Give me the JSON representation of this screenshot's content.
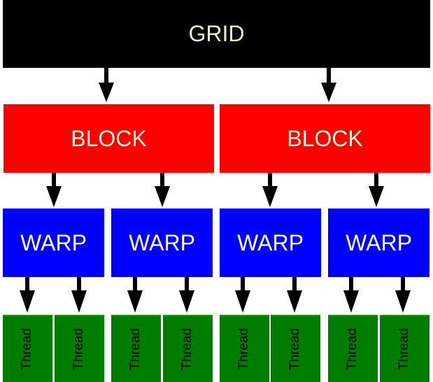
{
  "grid": {
    "label": "GRID",
    "color": "#000000"
  },
  "blocks": [
    {
      "label": "BLOCK"
    },
    {
      "label": "BLOCK"
    }
  ],
  "block_color": "#ff0000",
  "warps": [
    {
      "label": "WARP"
    },
    {
      "label": "WARP"
    },
    {
      "label": "WARP"
    },
    {
      "label": "WARP"
    }
  ],
  "warp_color": "#0000ff",
  "threads": [
    {
      "label": "Thread"
    },
    {
      "label": "Thread"
    },
    {
      "label": "Thread"
    },
    {
      "label": "Thread"
    },
    {
      "label": "Thread"
    },
    {
      "label": "Thread"
    },
    {
      "label": "Thread"
    },
    {
      "label": "Thread"
    }
  ],
  "thread_color": "#007d00",
  "arrow_color": "#000000"
}
